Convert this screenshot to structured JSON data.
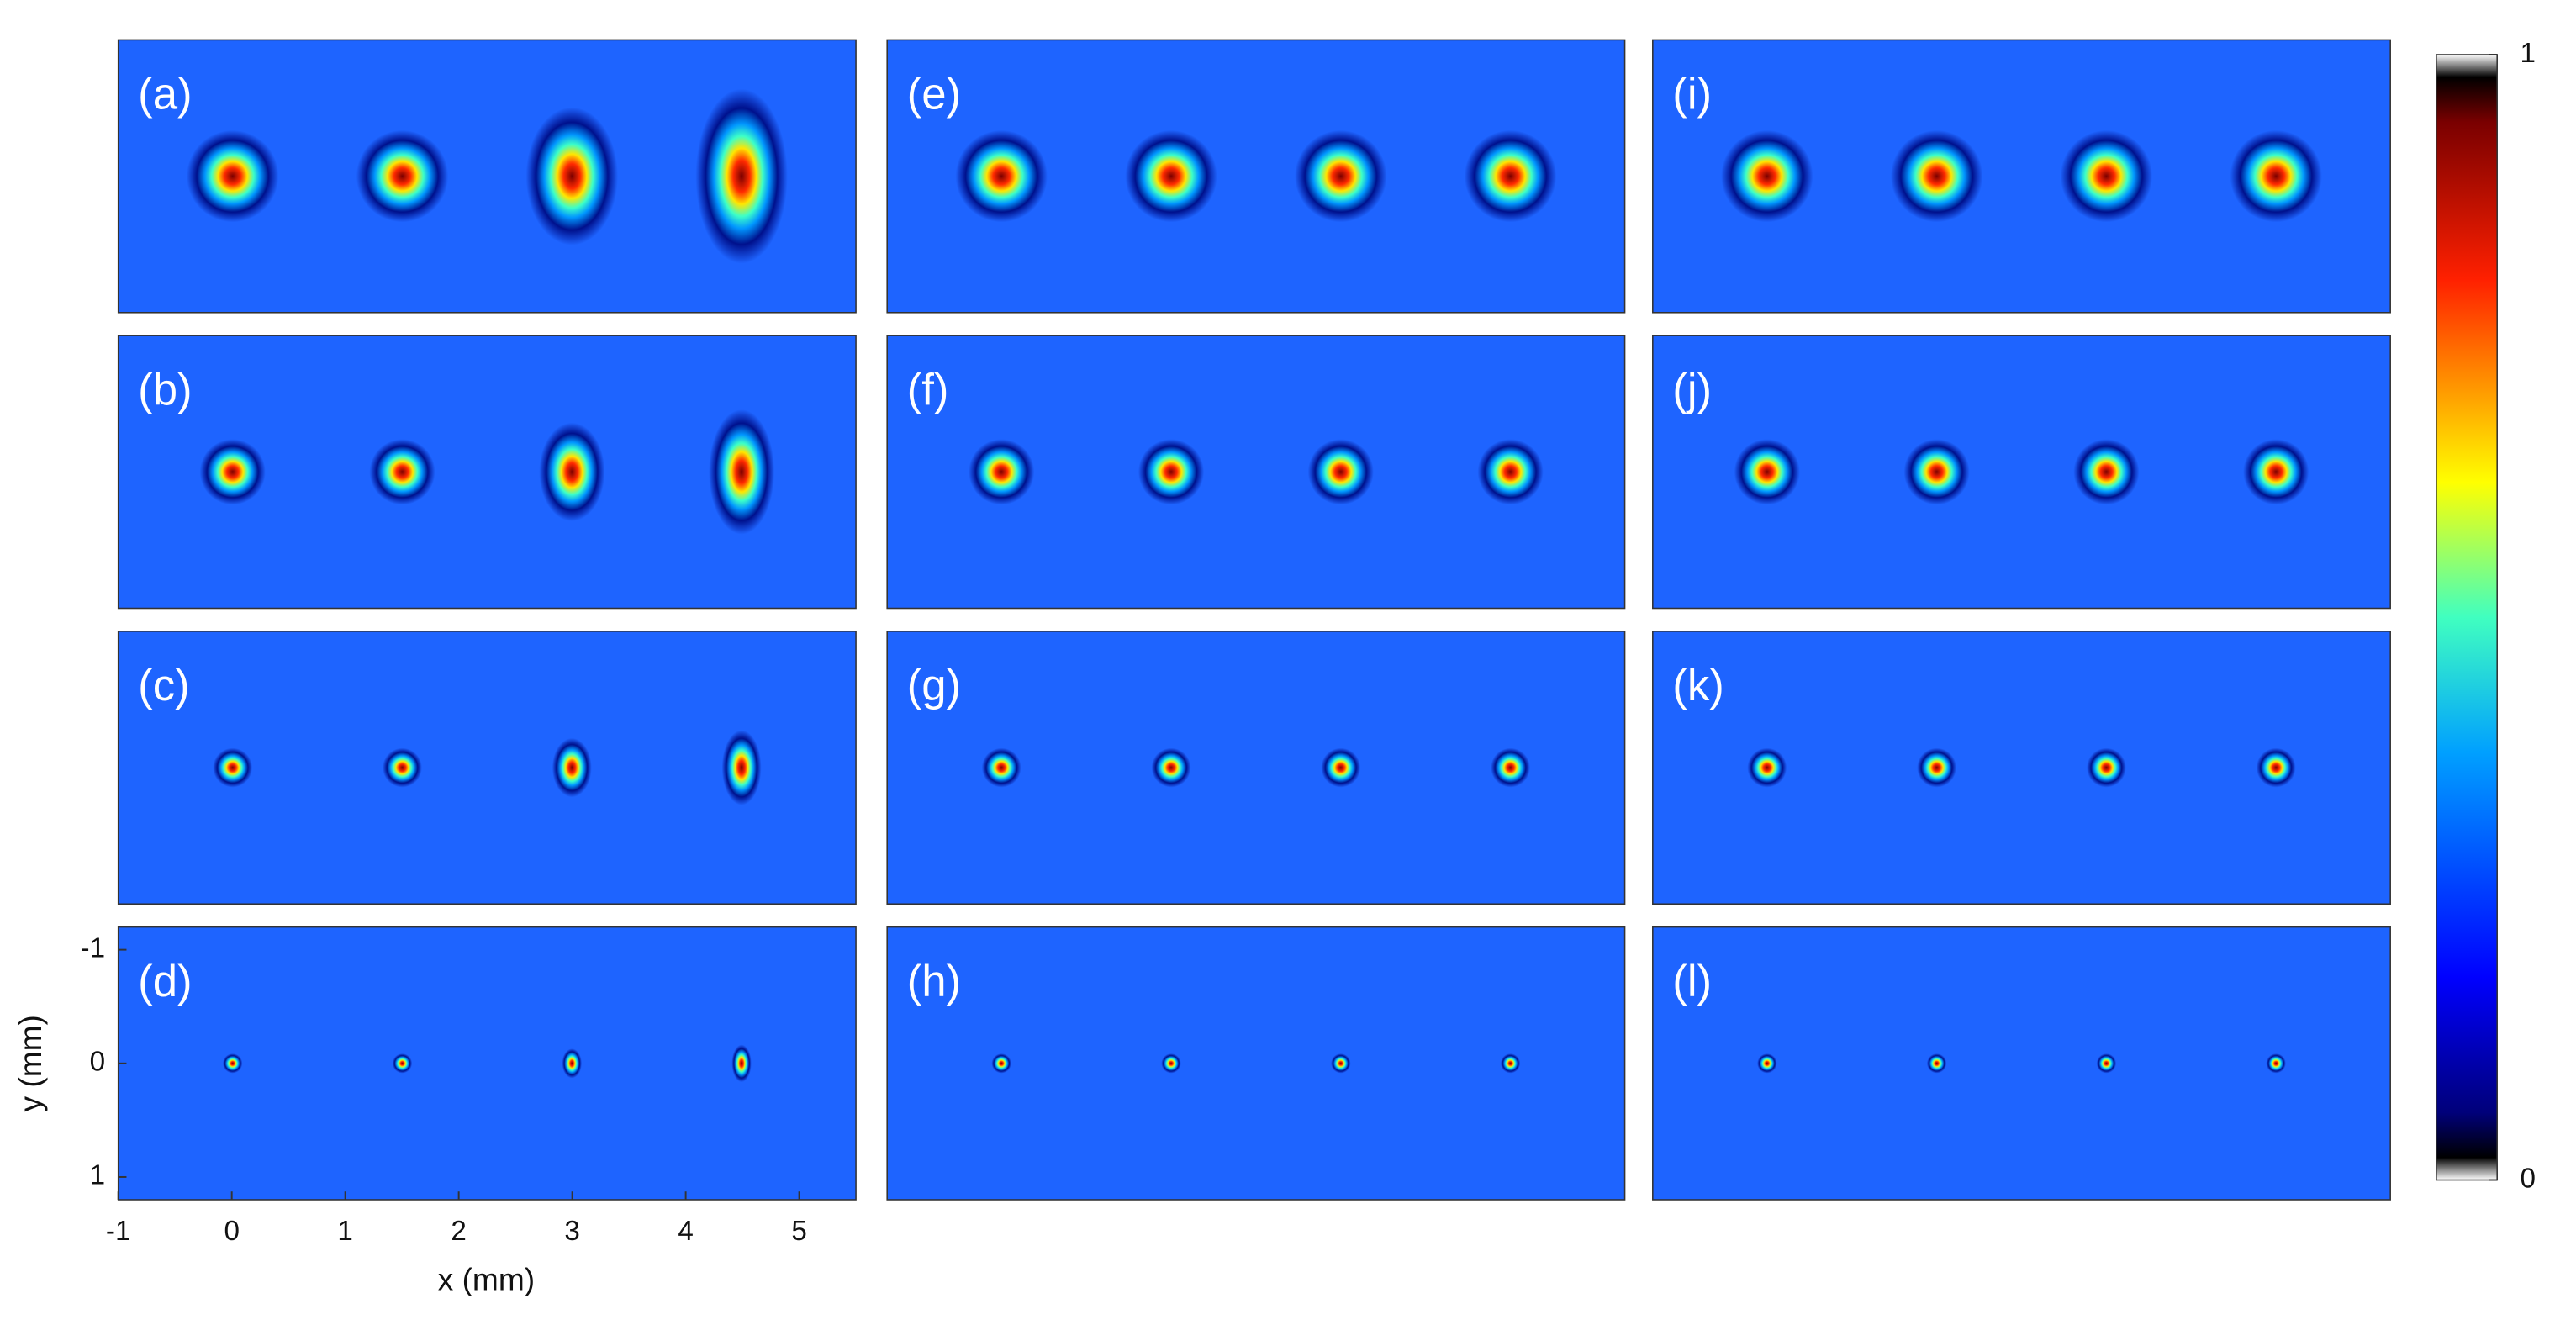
{
  "panels": [
    "(a)",
    "(b)",
    "(c)",
    "(d)",
    "(e)",
    "(f)",
    "(g)",
    "(h)",
    "(i)",
    "(j)",
    "(k)",
    "(l)"
  ],
  "x_axis": {
    "label": "x (mm)",
    "lim": [
      -1,
      5.5
    ],
    "ticks": [
      -1,
      0,
      1,
      2,
      3,
      4,
      5
    ]
  },
  "y_axis": {
    "label": "y (mm)",
    "lim": [
      -1.2,
      1.2
    ],
    "ticks": [
      -1,
      0,
      1
    ]
  },
  "colorbar": {
    "lim": [
      0,
      1
    ],
    "ticks": [
      0,
      1
    ]
  }
}
